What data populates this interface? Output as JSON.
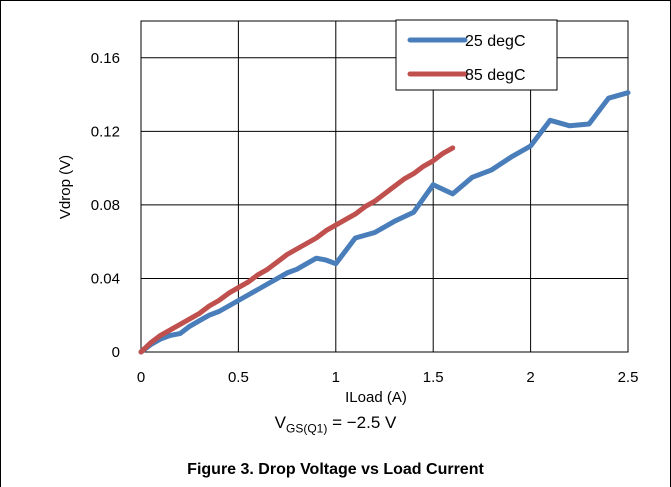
{
  "chart_data": {
    "type": "line",
    "xlabel": "ILoad (A)",
    "ylabel": "Vdrop (V)",
    "xlim": [
      0,
      2.5
    ],
    "ylim": [
      0,
      0.16
    ],
    "y_axis_top": 0.18,
    "x_ticks": [
      0,
      0.5,
      1,
      1.5,
      2,
      2.5
    ],
    "x_tick_labels": [
      "0",
      "0.5",
      "1",
      "1.5",
      "2",
      "2.5"
    ],
    "y_ticks": [
      0,
      0.04,
      0.08,
      0.12,
      0.16
    ],
    "y_tick_labels": [
      "0",
      "0.04",
      "0.08",
      "0.12",
      "0.16"
    ],
    "grid": true,
    "legend_position": "top-right",
    "series": [
      {
        "name": "25 degC",
        "color": "#4a7ebb",
        "x": [
          0,
          0.05,
          0.1,
          0.15,
          0.2,
          0.25,
          0.3,
          0.35,
          0.4,
          0.45,
          0.5,
          0.55,
          0.6,
          0.65,
          0.7,
          0.75,
          0.8,
          0.85,
          0.9,
          0.95,
          1.0,
          1.1,
          1.2,
          1.3,
          1.4,
          1.5,
          1.6,
          1.7,
          1.8,
          1.9,
          2.0,
          2.1,
          2.2,
          2.3,
          2.4,
          2.5
        ],
        "y": [
          0,
          0.004,
          0.007,
          0.009,
          0.01,
          0.014,
          0.017,
          0.02,
          0.022,
          0.025,
          0.028,
          0.031,
          0.034,
          0.037,
          0.04,
          0.043,
          0.045,
          0.048,
          0.051,
          0.05,
          0.048,
          0.062,
          0.065,
          0.071,
          0.076,
          0.091,
          0.086,
          0.095,
          0.099,
          0.106,
          0.112,
          0.126,
          0.123,
          0.124,
          0.138,
          0.141
        ]
      },
      {
        "name": "85 degC",
        "color": "#c0504d",
        "x": [
          0,
          0.05,
          0.1,
          0.15,
          0.2,
          0.25,
          0.3,
          0.35,
          0.4,
          0.45,
          0.5,
          0.55,
          0.6,
          0.65,
          0.7,
          0.75,
          0.8,
          0.85,
          0.9,
          0.95,
          1.0,
          1.05,
          1.1,
          1.15,
          1.2,
          1.25,
          1.3,
          1.35,
          1.4,
          1.45,
          1.5,
          1.55,
          1.6
        ],
        "y": [
          0,
          0.005,
          0.009,
          0.012,
          0.015,
          0.018,
          0.021,
          0.025,
          0.028,
          0.032,
          0.035,
          0.038,
          0.042,
          0.045,
          0.049,
          0.053,
          0.056,
          0.059,
          0.062,
          0.066,
          0.069,
          0.072,
          0.075,
          0.079,
          0.082,
          0.086,
          0.09,
          0.094,
          0.097,
          0.101,
          0.104,
          0.108,
          0.111
        ]
      }
    ]
  },
  "condition": {
    "main": "V",
    "sub": "GS(Q1)",
    "rest": " = −2.5 V"
  },
  "caption": "Figure 3. Drop Voltage vs Load Current"
}
